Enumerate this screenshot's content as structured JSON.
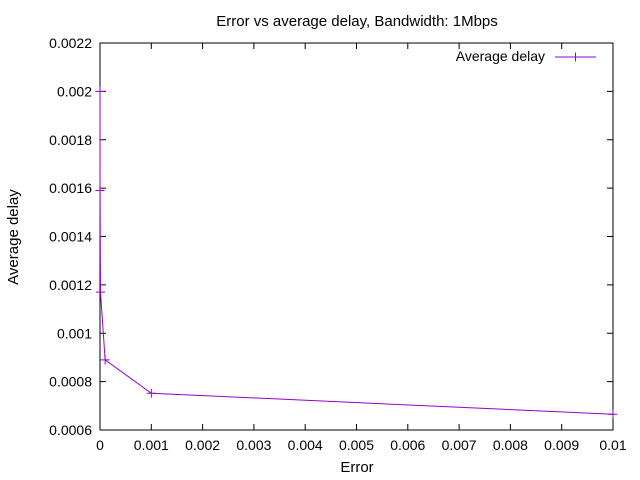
{
  "chart_data": {
    "type": "line",
    "title": "Error vs average delay, Bandwidth: 1Mbps",
    "xlabel": "Error",
    "ylabel": "Average delay",
    "xlim": [
      0,
      0.01
    ],
    "ylim": [
      0.0006,
      0.0022
    ],
    "x_ticks": [
      "0",
      "0.001",
      "0.002",
      "0.003",
      "0.004",
      "0.005",
      "0.006",
      "0.007",
      "0.008",
      "0.009",
      "0.01"
    ],
    "y_ticks": [
      "0.0006",
      "0.0008",
      "0.001",
      "0.0012",
      "0.0014",
      "0.0016",
      "0.0018",
      "0.002",
      "0.0022"
    ],
    "grid": false,
    "legend_position": "top-right",
    "series": [
      {
        "name": "Average delay",
        "color": "#9400d3",
        "x": [
          0,
          1e-06,
          1e-05,
          0.0001,
          0.001,
          0.01
        ],
        "y": [
          0.002,
          0.00159,
          0.00117,
          0.00089,
          0.000752,
          0.000665
        ]
      }
    ]
  }
}
